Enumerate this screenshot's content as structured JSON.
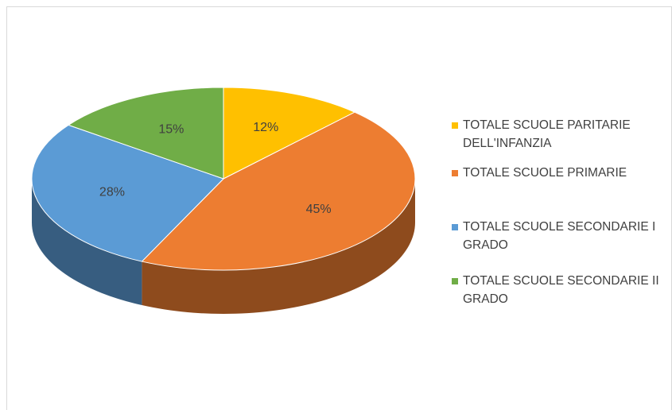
{
  "chart_data": {
    "type": "pie",
    "categories": [
      "TOTALE SCUOLE PARITARIE DELL'INFANZIA",
      "TOTALE SCUOLE PRIMARIE",
      "TOTALE SCUOLE SECONDARIE I GRADO",
      "TOTALE SCUOLE SECONDARIE II GRADO"
    ],
    "values": [
      12,
      45,
      28,
      15
    ],
    "value_labels": [
      "12%",
      "45%",
      "28%",
      "15%"
    ],
    "colors": [
      "#ffc000",
      "#ed7d31",
      "#5b9bd5",
      "#70ad47"
    ],
    "legend": "right"
  }
}
